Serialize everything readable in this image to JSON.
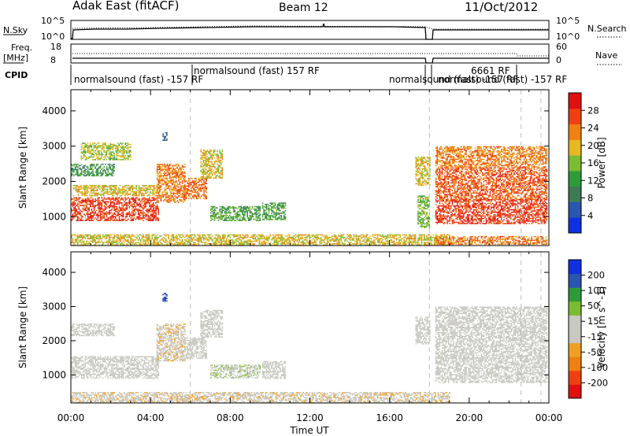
{
  "header": {
    "station": "Adak East (fitACF)",
    "beam": "Beam 12",
    "date": "11/Oct/2012"
  },
  "top_panels": {
    "nsky_label": "N.Sky",
    "nsky_ticks": [
      "10^5",
      "10^0"
    ],
    "nsearch_label": "N.Search",
    "nsearch_ticks": [
      "10^5",
      "10^0"
    ],
    "freq_label_1": "Freq.",
    "freq_label_2": "[MHz]",
    "freq_ticks": [
      "18",
      "8"
    ],
    "nave_label": "Nave",
    "nave_ticks": [
      "60",
      "0"
    ],
    "cpid_label": "CPID",
    "cpid_entries": [
      "normalsound (fast) -157 RF",
      "normalsound (fast) 157 RF",
      "normalsound (fast) -157 RF",
      "6661 RF",
      "normalsound (fast) -157 RF"
    ]
  },
  "colors": {
    "power_scale": [
      "#1030e0",
      "#2a55b0",
      "#3e7a55",
      "#2e9a3a",
      "#7cbc30",
      "#e8b820",
      "#f08010",
      "#ee4010",
      "#e01010"
    ],
    "velocity_scale": [
      "#e01010",
      "#ee4010",
      "#f08010",
      "#f0a020",
      "#c8c8c0",
      "#c8c8c0",
      "#7cbc30",
      "#2e9a3a",
      "#2a55b0",
      "#1030e0"
    ],
    "ground_scatter": "#bebeb6",
    "dashed_lines": "#c0c0c0"
  },
  "chart_data": [
    {
      "type": "heatmap",
      "name_shown": "Power panel",
      "title": "",
      "xlabel": "",
      "ylabel": "Slant Range [km]",
      "x_range_hours": [
        0,
        24
      ],
      "x_ticks": [
        "00:00",
        "04:00",
        "08:00",
        "12:00",
        "16:00",
        "20:00",
        "00:00"
      ],
      "y_range": [
        180,
        4600
      ],
      "y_ticks": [
        1000,
        2000,
        3000,
        4000
      ],
      "colorbar": {
        "label": "Power [dB]",
        "ticks": [
          "28",
          "24",
          "20",
          "16",
          "12",
          "8",
          "4"
        ],
        "range": [
          0,
          30
        ]
      },
      "regions": [
        {
          "t": [
            0.0,
            4.4
          ],
          "r": [
            900,
            1550
          ],
          "value": 26
        },
        {
          "t": [
            0.0,
            2.2
          ],
          "r": [
            2150,
            2500
          ],
          "value": 10
        },
        {
          "t": [
            0.1,
            4.4
          ],
          "r": [
            1600,
            1900
          ],
          "value": 18
        },
        {
          "t": [
            4.3,
            5.7
          ],
          "r": [
            1400,
            2500
          ],
          "value": 22
        },
        {
          "t": [
            5.7,
            6.8
          ],
          "r": [
            1500,
            2100
          ],
          "value": 23
        },
        {
          "t": [
            6.5,
            7.6
          ],
          "r": [
            2100,
            2900
          ],
          "value": 18
        },
        {
          "t": [
            7.0,
            9.5
          ],
          "r": [
            900,
            1300
          ],
          "value": 12
        },
        {
          "t": [
            9.6,
            10.8
          ],
          "r": [
            900,
            1400
          ],
          "value": 12
        },
        {
          "t": [
            4.6,
            4.8
          ],
          "r": [
            3150,
            3400
          ],
          "value": 6
        },
        {
          "t": [
            0.5,
            3.0
          ],
          "r": [
            2600,
            3100
          ],
          "value": 16
        },
        {
          "t": [
            0.0,
            19.0
          ],
          "r": [
            200,
            500
          ],
          "value": 18
        },
        {
          "t": [
            17.4,
            18.0
          ],
          "r": [
            700,
            1600
          ],
          "value": 14
        },
        {
          "t": [
            17.3,
            18.0
          ],
          "r": [
            1900,
            2700
          ],
          "value": 18
        },
        {
          "t": [
            18.3,
            23.9
          ],
          "r": [
            800,
            1500
          ],
          "value": 26
        },
        {
          "t": [
            18.3,
            23.9
          ],
          "r": [
            1500,
            2400
          ],
          "value": 24
        },
        {
          "t": [
            18.3,
            23.9
          ],
          "r": [
            2400,
            3000
          ],
          "value": 22
        },
        {
          "t": [
            18.3,
            23.9
          ],
          "r": [
            200,
            450
          ],
          "value": 22
        }
      ]
    },
    {
      "type": "heatmap",
      "name_shown": "Velocity panel",
      "title": "",
      "xlabel": "Time UT",
      "ylabel": "Slant Range [km]",
      "x_range_hours": [
        0,
        24
      ],
      "x_ticks": [
        "00:00",
        "04:00",
        "08:00",
        "12:00",
        "16:00",
        "20:00",
        "00:00"
      ],
      "y_range": [
        180,
        4600
      ],
      "y_ticks": [
        1000,
        2000,
        3000,
        4000
      ],
      "colorbar": {
        "label": "Velocity [m s^-1]",
        "ticks": [
          "200",
          "100",
          "50",
          "15",
          "-15",
          "-50",
          "-100",
          "-200"
        ],
        "range": [
          -250,
          250
        ]
      },
      "regions": [
        {
          "t": [
            0.0,
            4.4
          ],
          "r": [
            900,
            1550
          ],
          "value": 0
        },
        {
          "t": [
            0.0,
            2.2
          ],
          "r": [
            2150,
            2500
          ],
          "value": 0
        },
        {
          "t": [
            4.3,
            5.7
          ],
          "r": [
            1400,
            2500
          ],
          "value": -40
        },
        {
          "t": [
            5.7,
            6.8
          ],
          "r": [
            1500,
            2100
          ],
          "value": 0
        },
        {
          "t": [
            6.5,
            7.6
          ],
          "r": [
            2100,
            2900
          ],
          "value": 0
        },
        {
          "t": [
            7.0,
            9.5
          ],
          "r": [
            900,
            1300
          ],
          "value": 40
        },
        {
          "t": [
            9.6,
            10.8
          ],
          "r": [
            900,
            1400
          ],
          "value": 0
        },
        {
          "t": [
            4.6,
            4.8
          ],
          "r": [
            3150,
            3400
          ],
          "value": 200
        },
        {
          "t": [
            0.0,
            19.0
          ],
          "r": [
            200,
            500
          ],
          "value": -40
        },
        {
          "t": [
            17.3,
            18.0
          ],
          "r": [
            1900,
            2700
          ],
          "value": 30
        },
        {
          "t": [
            18.3,
            23.9
          ],
          "r": [
            800,
            1500
          ],
          "value": 0
        },
        {
          "t": [
            18.3,
            23.9
          ],
          "r": [
            1500,
            2400
          ],
          "value": 0
        },
        {
          "t": [
            18.3,
            23.9
          ],
          "r": [
            2400,
            3000
          ],
          "value": 0
        }
      ]
    }
  ]
}
